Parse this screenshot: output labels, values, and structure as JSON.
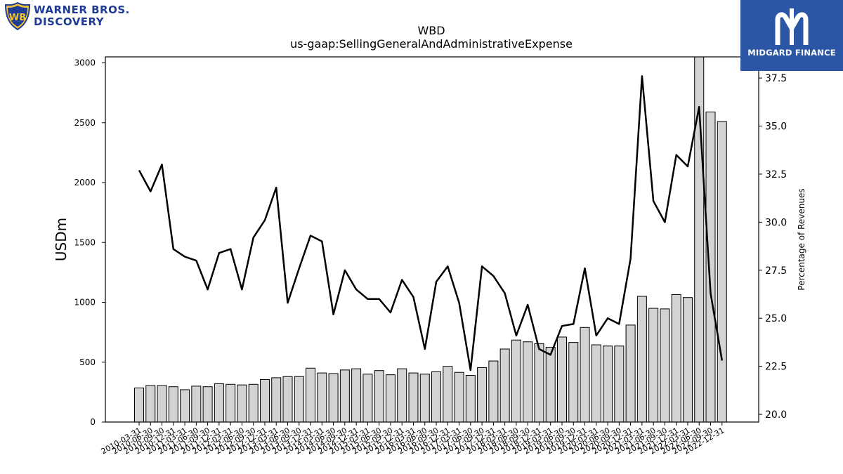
{
  "logos": {
    "wbd_line1": "WARNER BROS.",
    "wbd_line2": "DISCOVERY",
    "wbd_shield": "WB",
    "midgard": "MIDGARD FINANCE"
  },
  "colors": {
    "bar_fill": "#d3d3d3",
    "line": "#000000",
    "wbd_brand": "#1e3c96",
    "midgard_bg": "#2b56a6"
  },
  "chart_data": {
    "type": "bar",
    "title": "WBD",
    "subtitle": "us-gaap:SellingGeneralAndAdministrativeExpense",
    "ylabel": "USDm",
    "y2label": "Percentage of Revenues",
    "ylim": [
      0,
      3050
    ],
    "y2lim": [
      19.6,
      38.6
    ],
    "yticks": [
      "0",
      "500",
      "1000",
      "1500",
      "2000",
      "2500",
      "3000"
    ],
    "y2ticks": [
      "20.0",
      "22.5",
      "25.0",
      "27.5",
      "30.0",
      "32.5",
      "35.0",
      "37.5"
    ],
    "grid": false,
    "categories": [
      "2010-03-31",
      "2010-06-30",
      "2010-09-30",
      "2010-12-31",
      "2011-03-31",
      "2011-06-30",
      "2011-09-30",
      "2011-12-31",
      "2012-03-31",
      "2012-06-30",
      "2012-09-30",
      "2012-12-31",
      "2013-03-31",
      "2013-06-30",
      "2013-09-30",
      "2013-12-31",
      "2014-03-31",
      "2014-06-30",
      "2014-09-30",
      "2014-12-31",
      "2015-03-31",
      "2015-06-30",
      "2015-09-30",
      "2015-12-31",
      "2016-03-31",
      "2016-06-30",
      "2016-09-30",
      "2016-12-31",
      "2017-03-31",
      "2017-06-30",
      "2017-09-30",
      "2017-12-31",
      "2018-03-31",
      "2018-06-30",
      "2018-09-30",
      "2018-12-31",
      "2019-03-31",
      "2019-06-30",
      "2019-09-30",
      "2019-12-31",
      "2020-03-31",
      "2020-06-30",
      "2020-09-30",
      "2020-12-31",
      "2021-03-31",
      "2021-06-30",
      "2021-09-30",
      "2021-12-31",
      "2022-03-31",
      "2022-06-30",
      "2022-09-30",
      "2022-12-31"
    ],
    "series": [
      {
        "name": "SellingGeneralAndAdministrativeExpense",
        "kind": "bar",
        "axis": "left",
        "values": [
          285,
          305,
          305,
          295,
          270,
          300,
          295,
          320,
          315,
          310,
          315,
          355,
          370,
          380,
          380,
          450,
          410,
          405,
          435,
          445,
          400,
          430,
          395,
          445,
          410,
          400,
          420,
          465,
          415,
          390,
          455,
          510,
          610,
          685,
          670,
          655,
          625,
          710,
          665,
          790,
          645,
          635,
          635,
          810,
          1050,
          950,
          945,
          1065,
          1040,
          3050,
          2590,
          2510
        ]
      },
      {
        "name": "Percentage of Revenues",
        "kind": "line",
        "axis": "right",
        "values": [
          32.7,
          31.6,
          33.0,
          28.6,
          28.2,
          28.0,
          26.5,
          28.4,
          28.6,
          26.5,
          29.2,
          30.1,
          31.8,
          25.8,
          27.6,
          29.3,
          29.0,
          25.2,
          27.5,
          26.5,
          26.0,
          26.0,
          25.3,
          27.0,
          26.1,
          23.4,
          26.9,
          27.7,
          25.8,
          22.3,
          27.7,
          27.2,
          26.3,
          24.1,
          25.7,
          23.4,
          23.1,
          24.6,
          24.7,
          27.6,
          24.1,
          25.0,
          24.7,
          28.1,
          37.6,
          31.1,
          30.0,
          33.5,
          32.9,
          36.0,
          26.3,
          22.8
        ]
      }
    ]
  }
}
